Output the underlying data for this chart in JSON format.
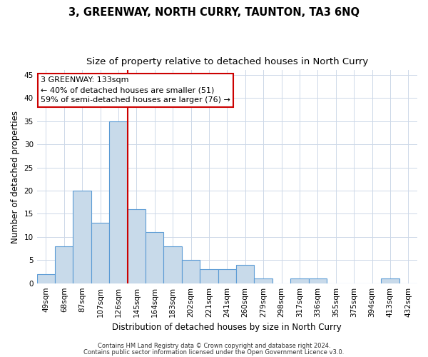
{
  "title": "3, GREENWAY, NORTH CURRY, TAUNTON, TA3 6NQ",
  "subtitle": "Size of property relative to detached houses in North Curry",
  "xlabel": "Distribution of detached houses by size in North Curry",
  "ylabel": "Number of detached properties",
  "bar_labels": [
    "49sqm",
    "68sqm",
    "87sqm",
    "107sqm",
    "126sqm",
    "145sqm",
    "164sqm",
    "183sqm",
    "202sqm",
    "221sqm",
    "241sqm",
    "260sqm",
    "279sqm",
    "298sqm",
    "317sqm",
    "336sqm",
    "355sqm",
    "375sqm",
    "394sqm",
    "413sqm",
    "432sqm"
  ],
  "bar_values": [
    2,
    8,
    20,
    13,
    35,
    16,
    11,
    8,
    5,
    3,
    3,
    4,
    1,
    0,
    1,
    1,
    0,
    0,
    0,
    1,
    0
  ],
  "bar_color": "#c8daea",
  "bar_edge_color": "#5b9bd5",
  "property_line_x": 4.5,
  "property_line_color": "#cc0000",
  "annotation_line1": "3 GREENWAY: 133sqm",
  "annotation_line2": "← 40% of detached houses are smaller (51)",
  "annotation_line3": "59% of semi-detached houses are larger (76) →",
  "annotation_box_color": "#cc0000",
  "ylim": [
    0,
    46
  ],
  "yticks": [
    0,
    5,
    10,
    15,
    20,
    25,
    30,
    35,
    40,
    45
  ],
  "footer_line1": "Contains HM Land Registry data © Crown copyright and database right 2024.",
  "footer_line2": "Contains public sector information licensed under the Open Government Licence v3.0.",
  "bg_color": "#ffffff",
  "grid_color": "#cdd8e8",
  "title_fontsize": 10.5,
  "subtitle_fontsize": 9.5,
  "ylabel_fontsize": 8.5,
  "xlabel_fontsize": 8.5,
  "tick_fontsize": 7.5,
  "annotation_fontsize": 8,
  "footer_fontsize": 6
}
